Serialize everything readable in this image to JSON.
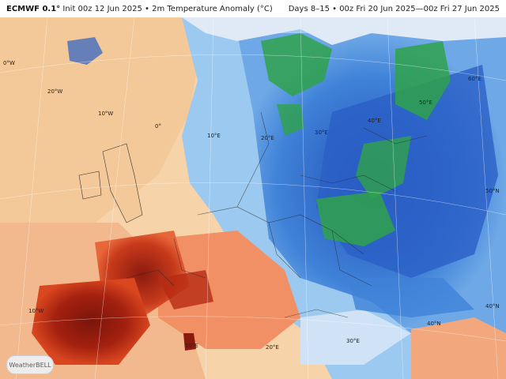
{
  "header": {
    "model": "ECMWF 0.1°",
    "init": "Init 00z 12 Jun 2025 • 2m Temperature Anomaly (°C)",
    "period": "Days 8–15 • 00z Fri 20 Jun 2025—00z Fri 27 Jun 2025"
  },
  "map": {
    "longitude_labels": [
      "0°W",
      "20°W",
      "10°W",
      "0°",
      "10°E",
      "20°E",
      "30°E",
      "40°E",
      "50°E",
      "60°E",
      "50°N",
      "40°N",
      "10°W",
      "20°E",
      "30°E",
      "10°E",
      "40°N"
    ],
    "colors": {
      "very_warm": "#8b1a0e",
      "warm": "#d9461f",
      "mild_warm": "#f3a77c",
      "slight_warm": "#f7d6b0",
      "neutral": "#e8eef6",
      "cool": "#8ec2ec",
      "cold": "#3f82d8",
      "very_cold": "#2b5fc6",
      "green_cold": "#2fa24a"
    }
  },
  "logo": {
    "text": "WeatherBELL"
  }
}
